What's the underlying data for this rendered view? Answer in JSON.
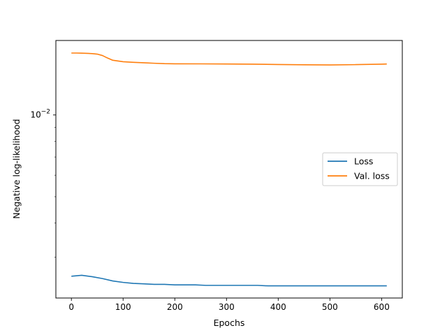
{
  "chart_data": {
    "type": "line",
    "title": "",
    "xlabel": "Epochs",
    "ylabel": "Negative log-likelihood",
    "xlim": [
      -30,
      640
    ],
    "ylim": [
      0.00212,
      0.0188
    ],
    "yscale": "log",
    "grid": false,
    "legend_position": "center-right",
    "x_ticks": [
      0,
      100,
      200,
      300,
      400,
      500,
      600
    ],
    "x_tick_labels": [
      "0",
      "100",
      "200",
      "300",
      "400",
      "500",
      "600"
    ],
    "y_ticks": [
      0.01
    ],
    "y_tick_labels": [
      {
        "base": "10",
        "exp": "−2"
      }
    ],
    "series": [
      {
        "name": "Loss",
        "color": "#1f77b4",
        "x": [
          0,
          20,
          40,
          60,
          80,
          100,
          120,
          140,
          160,
          180,
          200,
          220,
          240,
          260,
          280,
          300,
          320,
          340,
          360,
          380,
          400,
          420,
          440,
          460,
          480,
          500,
          520,
          540,
          560,
          580,
          600,
          610
        ],
        "y": [
          0.00255,
          0.00257,
          0.00254,
          0.0025,
          0.00245,
          0.00242,
          0.0024,
          0.00239,
          0.00238,
          0.00238,
          0.00237,
          0.00237,
          0.00237,
          0.00236,
          0.00236,
          0.00236,
          0.00236,
          0.00236,
          0.00236,
          0.00235,
          0.00235,
          0.00235,
          0.00235,
          0.00235,
          0.00235,
          0.00235,
          0.00235,
          0.00235,
          0.00235,
          0.00235,
          0.00235,
          0.00235
        ]
      },
      {
        "name": "Val. loss",
        "color": "#ff7f0e",
        "x": [
          0,
          10,
          20,
          30,
          40,
          50,
          60,
          70,
          80,
          100,
          120,
          140,
          160,
          180,
          200,
          250,
          300,
          350,
          400,
          450,
          500,
          550,
          600,
          610
        ],
        "y": [
          0.0169,
          0.0169,
          0.01688,
          0.01686,
          0.01682,
          0.01675,
          0.01655,
          0.0162,
          0.0159,
          0.0157,
          0.01562,
          0.01556,
          0.0155,
          0.01545,
          0.01543,
          0.01542,
          0.0154,
          0.01538,
          0.01534,
          0.0153,
          0.01528,
          0.01532,
          0.01538,
          0.0154
        ]
      }
    ]
  }
}
